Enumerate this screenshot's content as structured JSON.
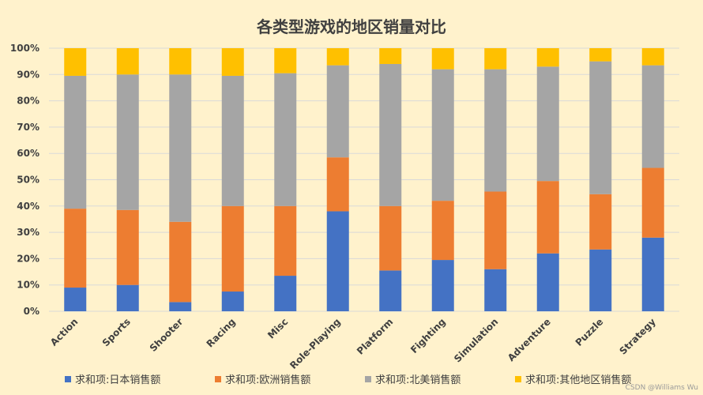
{
  "chart_data": {
    "type": "bar",
    "stacked": true,
    "title": "各类型游戏的地区销量对比",
    "categories": [
      "Action",
      "Sports",
      "Shooter",
      "Racing",
      "Misc",
      "Role-Playing",
      "Platform",
      "Fighting",
      "Simulation",
      "Adventure",
      "Puzzle",
      "Strategy"
    ],
    "series": [
      {
        "name": "求和项:日本销售额",
        "color": "#4472C4",
        "values": [
          9,
          10,
          3.5,
          7.5,
          13.5,
          38,
          15.5,
          19.5,
          16,
          22,
          23.5,
          28
        ]
      },
      {
        "name": "求和项:欧洲销售额",
        "color": "#ED7D31",
        "values": [
          30,
          28.5,
          30.5,
          32.5,
          26.5,
          20.5,
          24.5,
          22.5,
          29.5,
          27.5,
          21,
          26.5
        ]
      },
      {
        "name": "求和项:北美销售额",
        "color": "#A5A5A5",
        "values": [
          50.5,
          51.5,
          56,
          49.5,
          50.5,
          35,
          54,
          50,
          46.5,
          43.5,
          50.5,
          39
        ]
      },
      {
        "name": "求和项:其他地区销售额",
        "color": "#FFC000",
        "values": [
          10.5,
          10,
          10,
          10.5,
          9.5,
          6.5,
          6,
          8,
          8,
          7,
          5,
          6.5
        ]
      }
    ],
    "yticks": [
      "0%",
      "10%",
      "20%",
      "30%",
      "40%",
      "50%",
      "60%",
      "70%",
      "80%",
      "90%",
      "100%"
    ],
    "ylim": [
      0,
      100
    ],
    "grid": true,
    "legend_position": "bottom"
  },
  "watermark": "CSDN @Williams Wu"
}
